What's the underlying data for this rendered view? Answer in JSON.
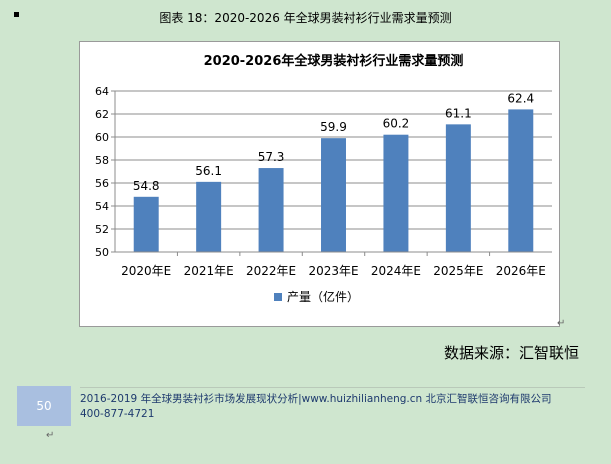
{
  "caption": "图表 18：2020-2026 年全球男装衬衫行业需求量预测",
  "source": "数据来源：汇智联恒",
  "footer": {
    "page_number": "50",
    "line1": "2016-2019 年全球男装衬衫市场发展现状分析|www.huizhilianheng.cn 北京汇智联恒咨询有限公司",
    "line2": "400-877-4721"
  },
  "chart_data": {
    "type": "bar",
    "title": "2020-2026年全球男装衬衫行业需求量预测",
    "categories": [
      "2020年E",
      "2021年E",
      "2022年E",
      "2023年E",
      "2024年E",
      "2025年E",
      "2026年E"
    ],
    "series": [
      {
        "name": "产量（亿件）",
        "values": [
          54.8,
          56.1,
          57.3,
          59.9,
          60.2,
          61.1,
          62.4
        ]
      }
    ],
    "ylim": [
      50,
      64
    ],
    "yticks": [
      50,
      52,
      54,
      56,
      58,
      60,
      62,
      64
    ],
    "xlabel": "",
    "ylabel": "",
    "grid": true,
    "legend_position": "bottom",
    "colors": {
      "bar": "#4f81bd",
      "grid": "#8c8c8c"
    }
  }
}
